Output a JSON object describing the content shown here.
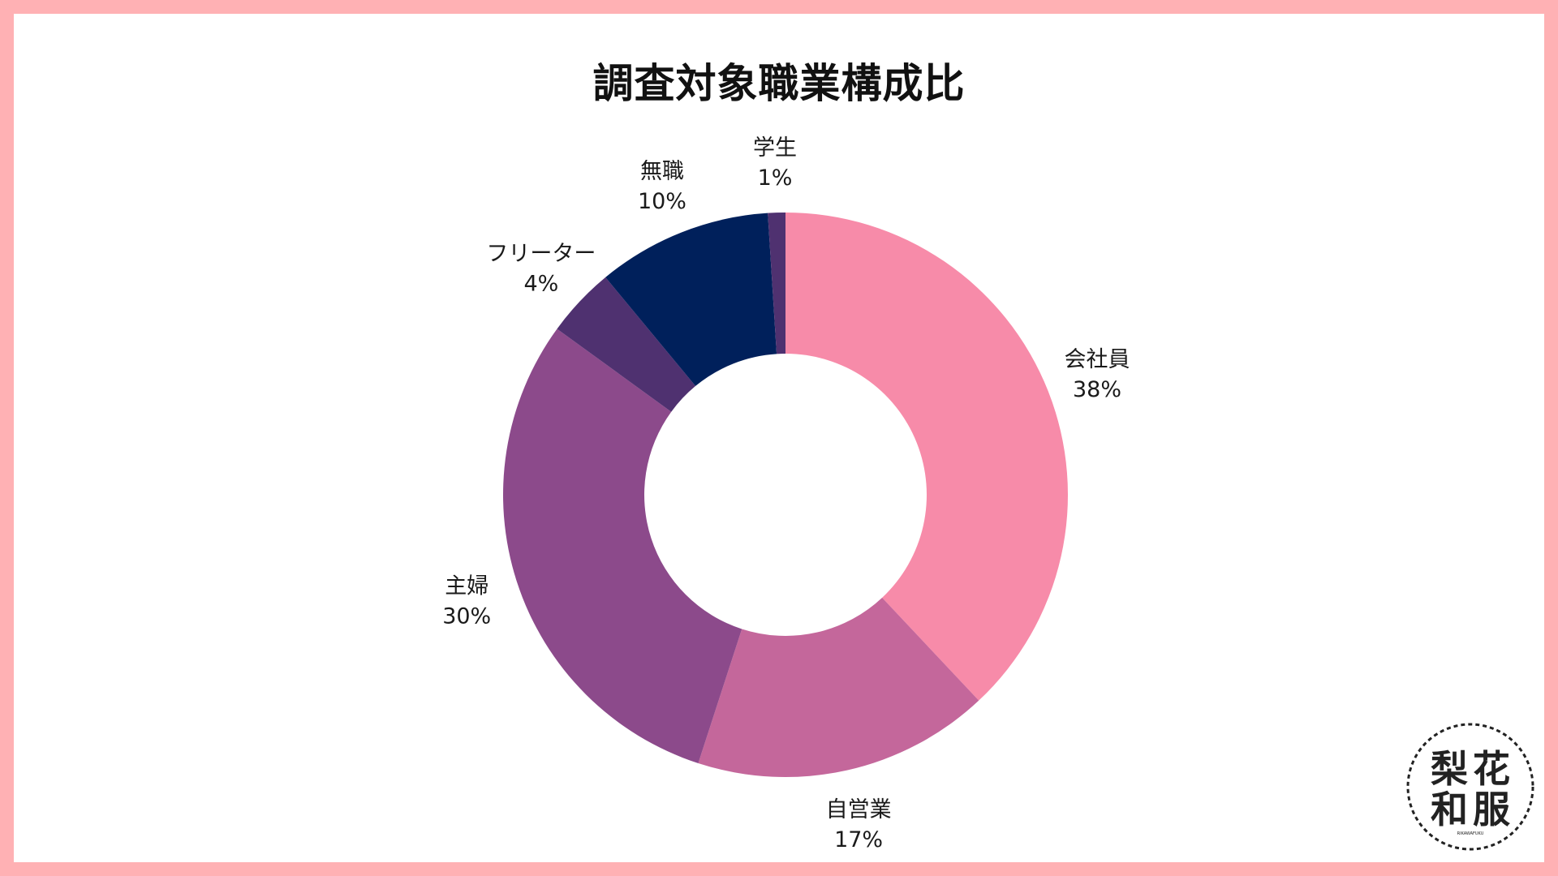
{
  "chart_data": {
    "type": "pie",
    "variant": "donut",
    "title": "調査対象職業構成比",
    "start_angle_deg": 0,
    "direction": "clockwise",
    "slices": [
      {
        "label": "会社員",
        "value": 38,
        "value_label": "38%",
        "color": "#f78ba9"
      },
      {
        "label": "自営業",
        "value": 17,
        "value_label": "17%",
        "color": "#c4679b"
      },
      {
        "label": "主婦",
        "value": 30,
        "value_label": "30%",
        "color": "#8c4a8b"
      },
      {
        "label": "フリーター",
        "value": 4,
        "value_label": "4%",
        "color": "#4f3170"
      },
      {
        "label": "無職",
        "value": 10,
        "value_label": "10%",
        "color": "#00205b"
      },
      {
        "label": "学生",
        "value": 1,
        "value_label": "1%",
        "color": "#4f3170"
      }
    ],
    "legend": "none"
  },
  "logo": {
    "chars": [
      "梨",
      "花",
      "和",
      "服"
    ],
    "sub": "RIKAWAFUKU"
  },
  "colors": {
    "border": "#ffb1b4",
    "background": "#ffffff",
    "text": "#1a1a1a"
  }
}
